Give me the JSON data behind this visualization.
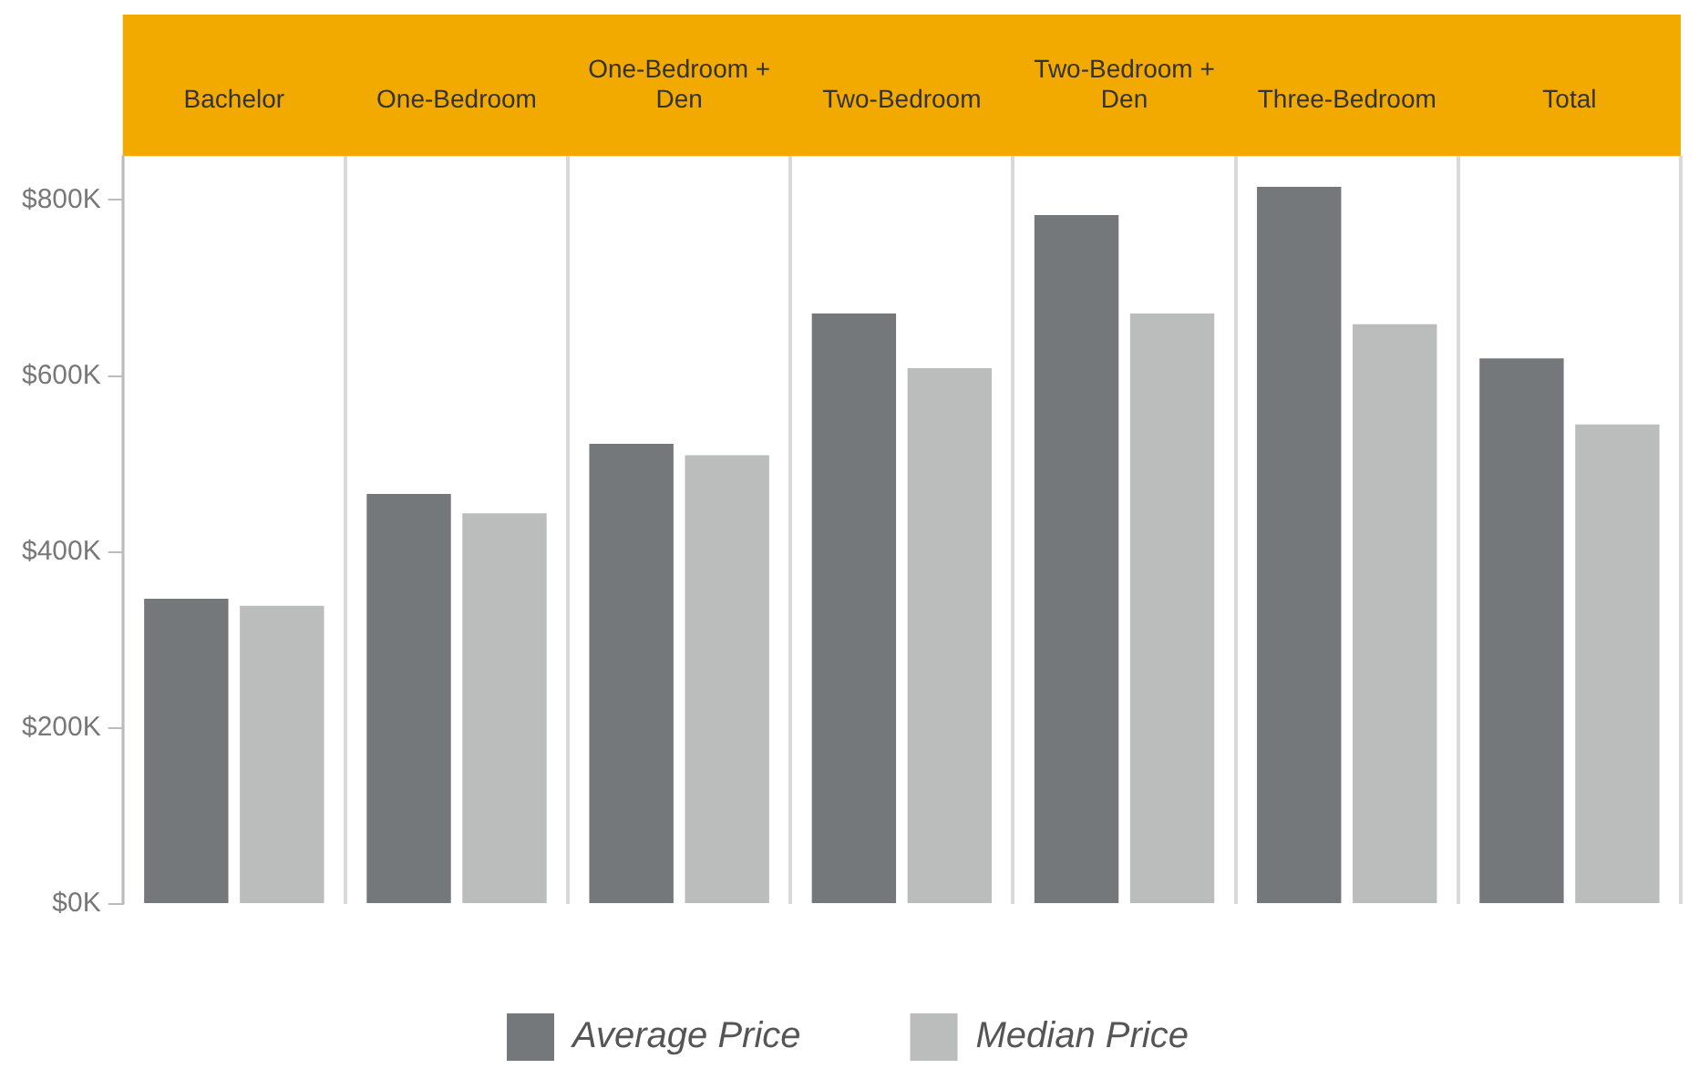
{
  "chart_data": {
    "type": "bar",
    "categories": [
      "Bachelor",
      "One-Bedroom",
      "One-Bedroom + Den",
      "Two-Bedroom",
      "Two-Bedroom + Den",
      "Three-Bedroom",
      "Total"
    ],
    "series": [
      {
        "name": "Average Price",
        "color": "#75787b",
        "values": [
          347,
          466,
          523,
          671,
          783,
          815,
          620
        ]
      },
      {
        "name": "Median Price",
        "color": "#bbbcbc",
        "values": [
          339,
          444,
          510,
          609,
          671,
          659,
          545
        ]
      }
    ],
    "ylim": [
      0,
      850
    ],
    "yticks": [
      {
        "value": 0,
        "label": "$0K"
      },
      {
        "value": 200,
        "label": "$200K"
      },
      {
        "value": 400,
        "label": "$400K"
      },
      {
        "value": 600,
        "label": "$600K"
      },
      {
        "value": 800,
        "label": "$800K"
      }
    ],
    "grid": "x",
    "legend": "bottom"
  }
}
